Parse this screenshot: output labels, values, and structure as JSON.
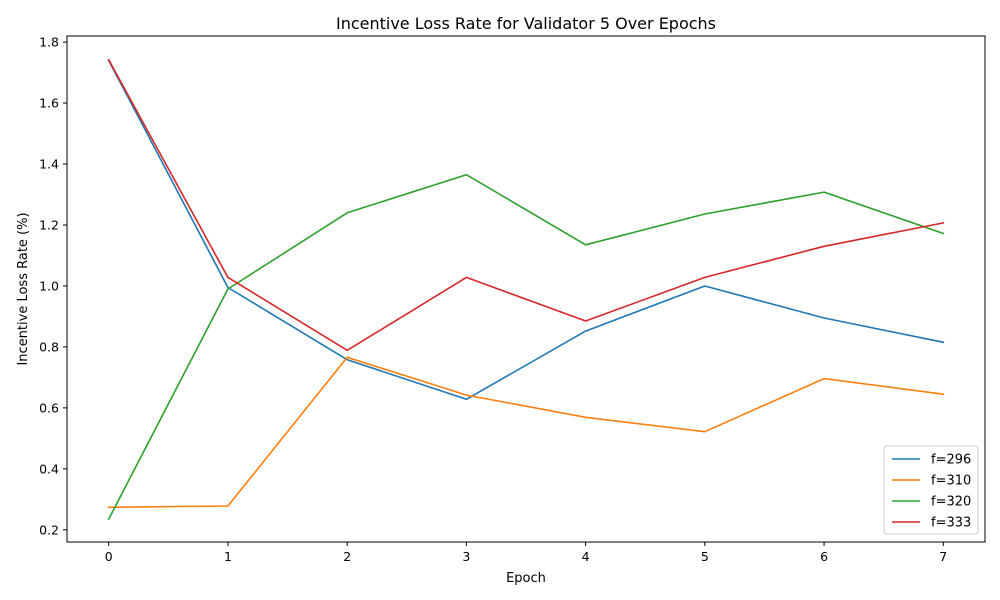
{
  "chart_data": {
    "type": "line",
    "title": "Incentive Loss Rate for Validator 5 Over Epochs",
    "xlabel": "Epoch",
    "ylabel": "Incentive Loss Rate (%)",
    "x": [
      0,
      1,
      2,
      3,
      4,
      5,
      6,
      7
    ],
    "xticks": [
      "0",
      "1",
      "2",
      "3",
      "4",
      "5",
      "6",
      "7"
    ],
    "yticks": [
      "0.2",
      "0.4",
      "0.6",
      "0.8",
      "1.0",
      "1.2",
      "1.4",
      "1.6",
      "1.8"
    ],
    "xlim": [
      -0.35,
      7.35
    ],
    "ylim": [
      0.16,
      1.82
    ],
    "grid": false,
    "legend_position": "lower right",
    "series": [
      {
        "name": "f=296",
        "color": "#1f77b4",
        "values": [
          1.74,
          0.995,
          0.758,
          0.628,
          0.852,
          1.0,
          0.895,
          0.815
        ]
      },
      {
        "name": "f=310",
        "color": "#ff7f0e",
        "values": [
          0.274,
          0.278,
          0.766,
          0.642,
          0.569,
          0.522,
          0.696,
          0.645
        ]
      },
      {
        "name": "f=320",
        "color": "#2ca02c",
        "values": [
          0.235,
          0.99,
          1.24,
          1.365,
          1.135,
          1.236,
          1.308,
          1.172
        ]
      },
      {
        "name": "f=333",
        "color": "#d62728",
        "values": [
          1.742,
          1.028,
          0.789,
          1.028,
          0.885,
          1.028,
          1.13,
          1.207
        ]
      }
    ]
  }
}
